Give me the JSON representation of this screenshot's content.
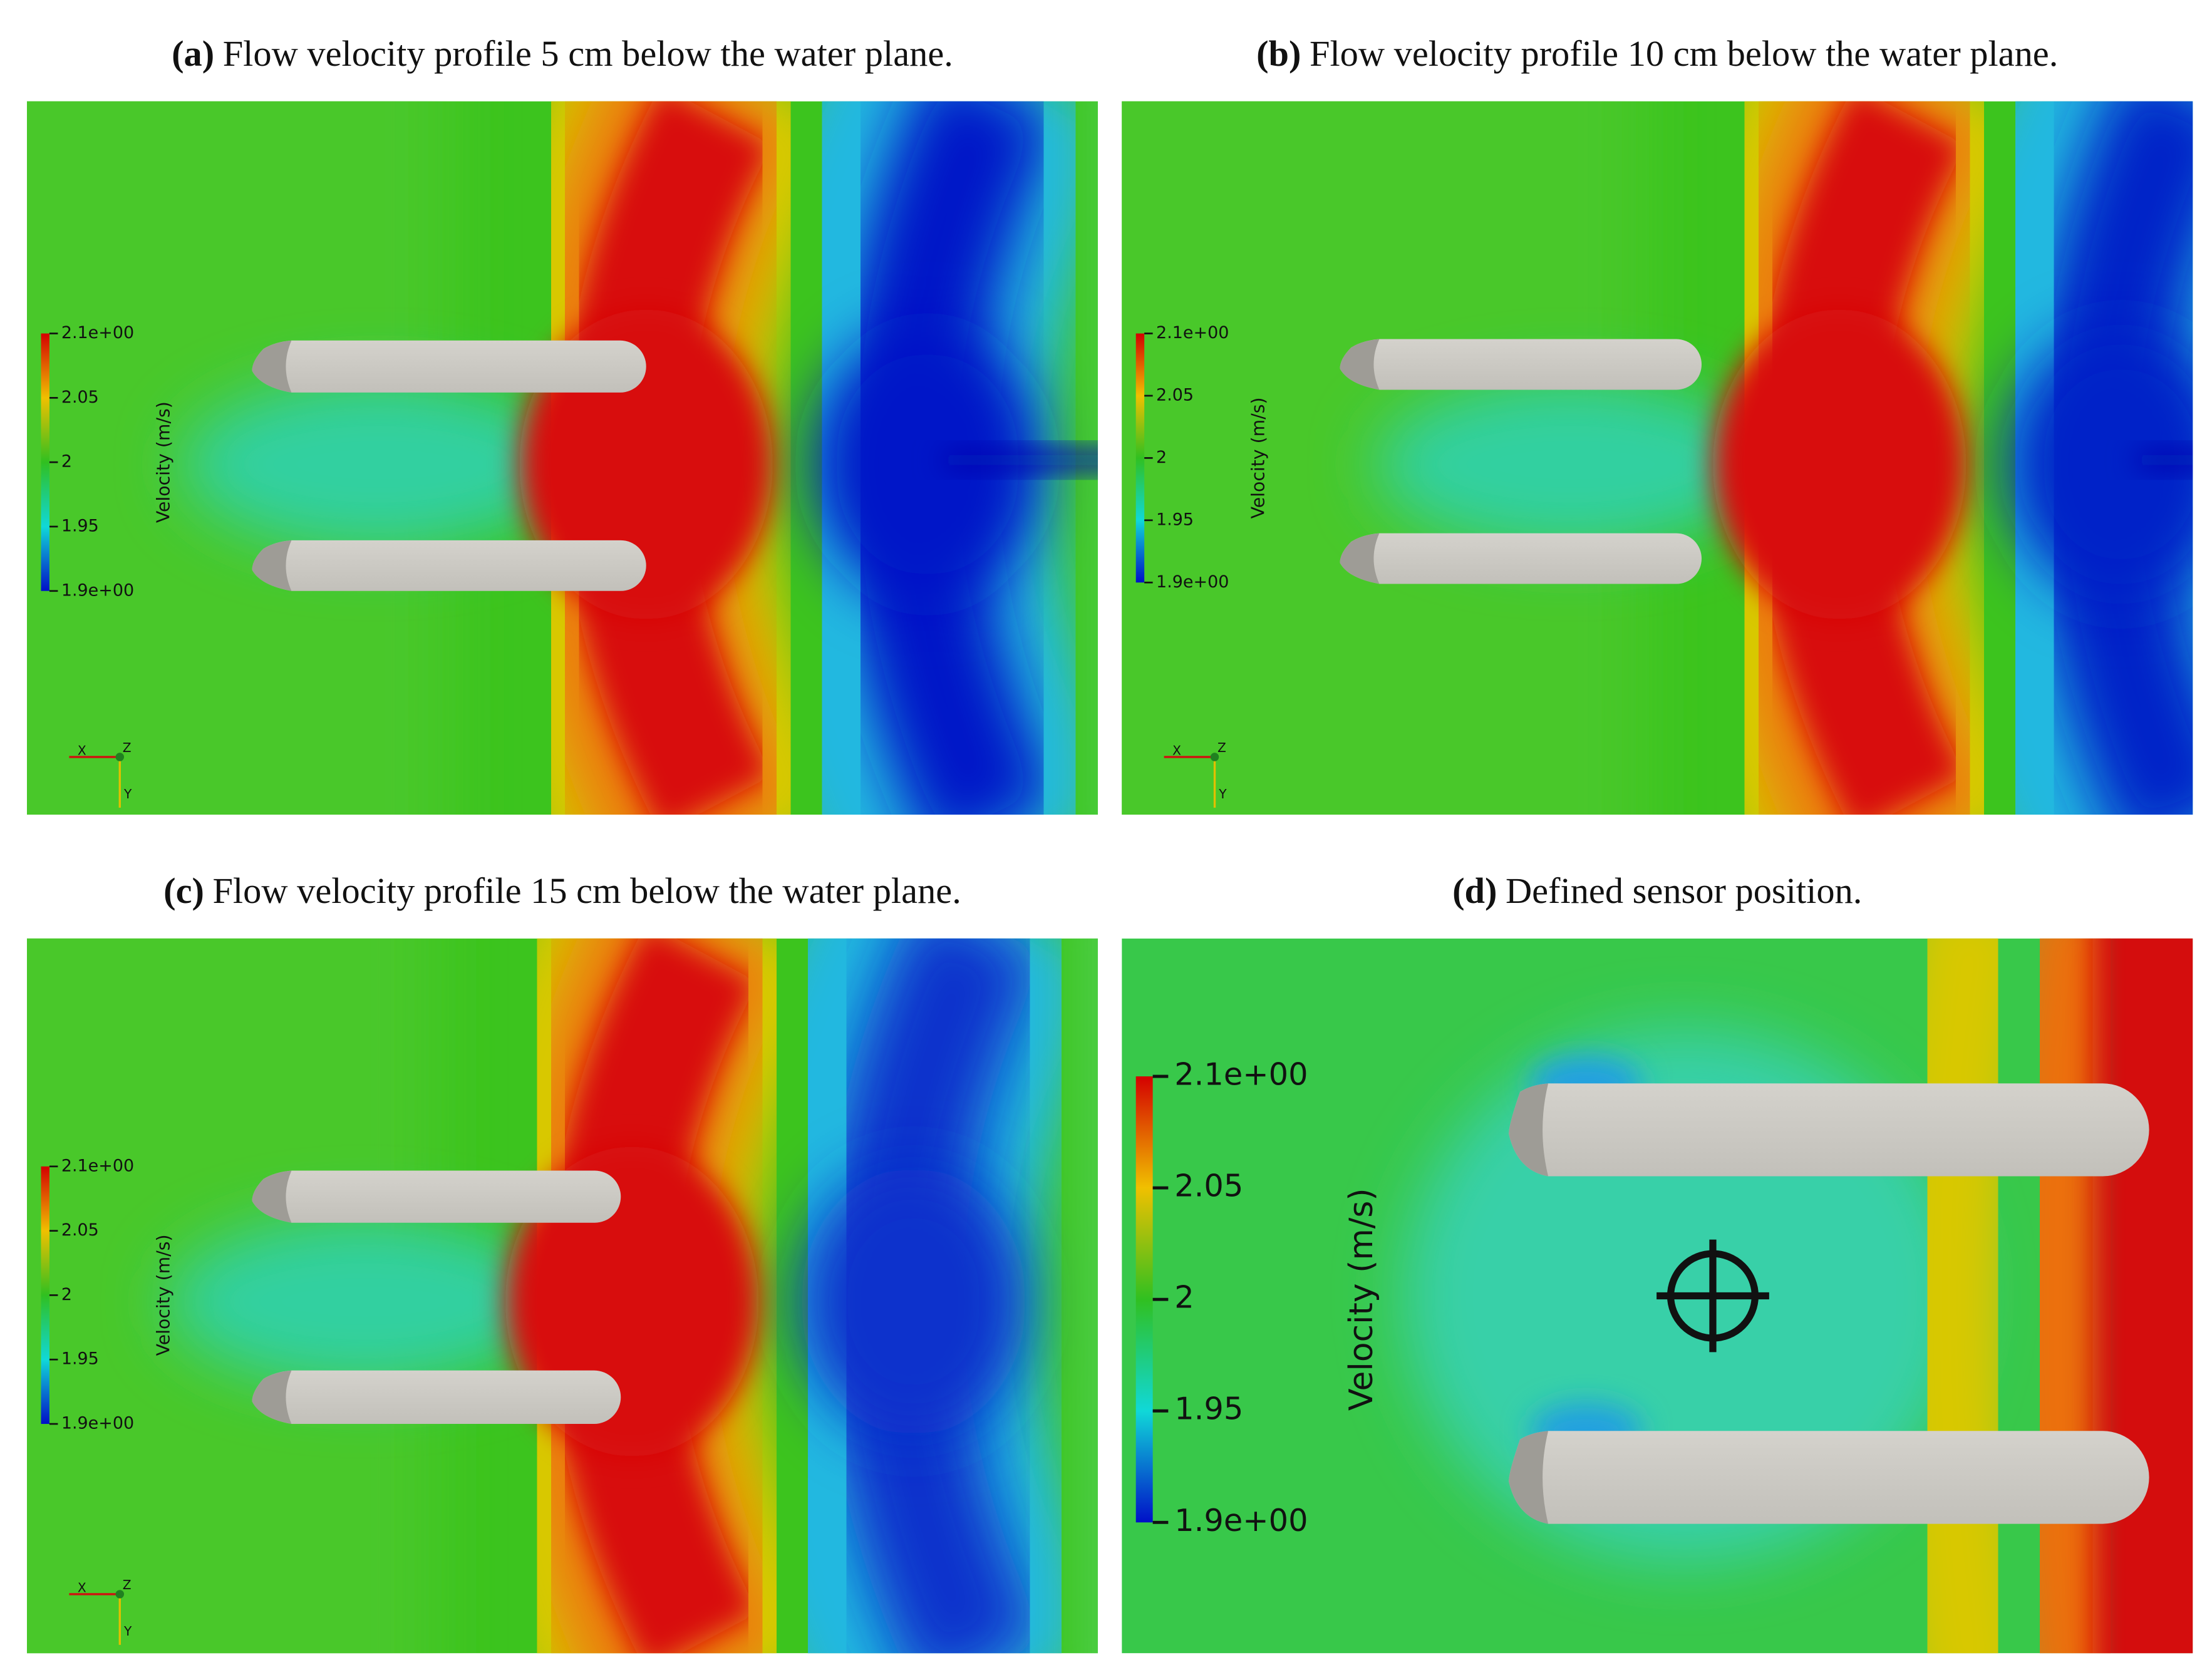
{
  "panels": [
    {
      "label": "(a)",
      "caption": "Flow velocity profile 5 cm below the water plane.",
      "colorbar": {
        "title": "Velocity (m/s)",
        "range": [
          1.9,
          2.1
        ],
        "ticks": [
          {
            "value": 2.1,
            "label": "2.1e+00"
          },
          2.05,
          2,
          1.95,
          {
            "value": 1.9,
            "label": "1.9e+00"
          }
        ]
      },
      "axes": [
        "X",
        "Z",
        "Y"
      ]
    },
    {
      "label": "(b)",
      "caption": "Flow velocity profile 10 cm below the water plane.",
      "colorbar": {
        "title": "Velocity (m/s)",
        "range": [
          1.9,
          2.1
        ],
        "ticks": [
          {
            "value": 2.1,
            "label": "2.1e+00"
          },
          2.05,
          2,
          1.95,
          {
            "value": 1.9,
            "label": "1.9e+00"
          }
        ]
      },
      "axes": [
        "X",
        "Z",
        "Y"
      ]
    },
    {
      "label": "(c)",
      "caption": "Flow velocity profile 15 cm below the water plane.",
      "colorbar": {
        "title": "Velocity (m/s)",
        "range": [
          1.9,
          2.1
        ],
        "ticks": [
          {
            "value": 2.1,
            "label": "2.1e+00"
          },
          2.05,
          2,
          1.95,
          {
            "value": 1.9,
            "label": "1.9e+00"
          }
        ]
      },
      "axes": [
        "X",
        "Z",
        "Y"
      ]
    },
    {
      "label": "(d)",
      "caption": "Defined sensor position.",
      "colorbar": {
        "title": "Velocity (m/s)",
        "range": [
          1.9,
          2.1
        ],
        "ticks": [
          {
            "value": 2.1,
            "label": "2.1e+00"
          },
          2.05,
          2,
          1.95,
          {
            "value": 1.9,
            "label": "1.9e+00"
          }
        ]
      }
    }
  ]
}
